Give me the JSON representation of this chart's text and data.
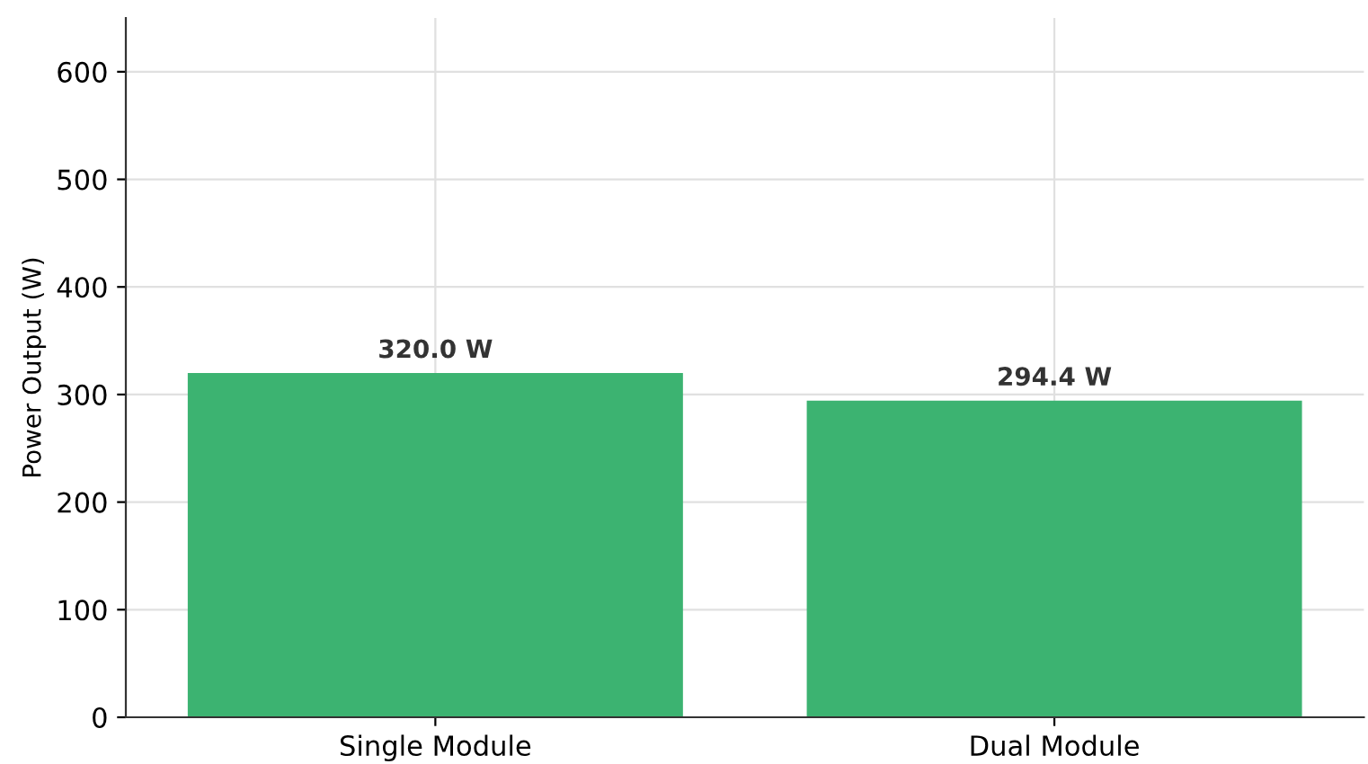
{
  "chart_data": {
    "type": "bar",
    "ylabel": "Power Output (W)",
    "categories": [
      "Single Module",
      "Dual Module"
    ],
    "values": [
      320.0,
      294.4
    ],
    "color": "#3cb371",
    "value_labels": [
      "320.0 W",
      "294.4 W"
    ],
    "ylim": [
      0,
      650
    ],
    "yticks": [
      0,
      100,
      200,
      300,
      400,
      500,
      600
    ],
    "grid": true
  }
}
